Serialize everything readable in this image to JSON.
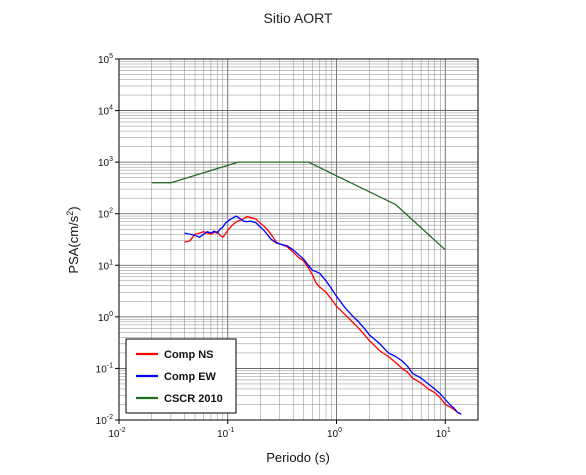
{
  "chart_data": {
    "type": "line",
    "title": "Sitio AORT",
    "xlabel": "Periodo (s)",
    "ylabel_base": "PSA(cm/s",
    "ylabel_exp": "2",
    "ylabel_close": ")",
    "x_scale": "log",
    "y_scale": "log",
    "xlim": [
      0.01,
      20
    ],
    "ylim": [
      0.01,
      100000
    ],
    "grid": true,
    "legend_position": "bottom-left",
    "x_ticks": [
      {
        "base": "10",
        "exp": "-2",
        "value": 0.01
      },
      {
        "base": "10",
        "exp": "-1",
        "value": 0.1
      },
      {
        "base": "10",
        "exp": "0",
        "value": 1
      },
      {
        "base": "10",
        "exp": "1",
        "value": 10
      }
    ],
    "y_ticks": [
      {
        "base": "10",
        "exp": "-2",
        "value": 0.01
      },
      {
        "base": "10",
        "exp": "-1",
        "value": 0.1
      },
      {
        "base": "10",
        "exp": "0",
        "value": 1
      },
      {
        "base": "10",
        "exp": "1",
        "value": 10
      },
      {
        "base": "10",
        "exp": "2",
        "value": 100
      },
      {
        "base": "10",
        "exp": "3",
        "value": 1000
      },
      {
        "base": "10",
        "exp": "4",
        "value": 10000
      },
      {
        "base": "10",
        "exp": "5",
        "value": 100000
      }
    ],
    "series": [
      {
        "name": "Comp NS",
        "color": "#ff0000",
        "x": [
          0.04,
          0.045,
          0.05,
          0.055,
          0.06,
          0.065,
          0.07,
          0.075,
          0.08,
          0.085,
          0.09,
          0.095,
          0.1,
          0.11,
          0.12,
          0.13,
          0.14,
          0.15,
          0.16,
          0.18,
          0.2,
          0.22,
          0.25,
          0.28,
          0.3,
          0.35,
          0.4,
          0.45,
          0.5,
          0.55,
          0.6,
          0.65,
          0.7,
          0.8,
          0.9,
          1,
          1.2,
          1.4,
          1.6,
          1.8,
          2,
          2.5,
          3,
          3.5,
          4,
          4.5,
          5,
          6,
          7,
          8,
          9,
          10,
          11,
          12,
          13,
          14
        ],
        "y": [
          28,
          30,
          40,
          42,
          45,
          42,
          40,
          43,
          45,
          38,
          35,
          40,
          48,
          60,
          70,
          75,
          80,
          88,
          85,
          80,
          65,
          55,
          40,
          28,
          26,
          23,
          18,
          14,
          12,
          9,
          6.5,
          4.5,
          3.8,
          3,
          2.2,
          1.6,
          1.1,
          0.8,
          0.6,
          0.45,
          0.35,
          0.22,
          0.17,
          0.13,
          0.1,
          0.085,
          0.065,
          0.052,
          0.04,
          0.034,
          0.027,
          0.02,
          0.018,
          0.016,
          0.014,
          0.013
        ]
      },
      {
        "name": "Comp EW",
        "color": "#0000ff",
        "x": [
          0.04,
          0.045,
          0.05,
          0.055,
          0.06,
          0.065,
          0.07,
          0.075,
          0.08,
          0.085,
          0.09,
          0.095,
          0.1,
          0.11,
          0.12,
          0.13,
          0.14,
          0.15,
          0.16,
          0.18,
          0.2,
          0.22,
          0.25,
          0.28,
          0.3,
          0.35,
          0.4,
          0.45,
          0.5,
          0.55,
          0.6,
          0.65,
          0.7,
          0.8,
          0.9,
          1,
          1.2,
          1.4,
          1.6,
          1.8,
          2,
          2.5,
          3,
          3.5,
          4,
          4.5,
          5,
          6,
          7,
          8,
          9,
          10,
          11,
          12,
          13,
          14
        ],
        "y": [
          42,
          40,
          38,
          35,
          40,
          45,
          42,
          46,
          42,
          50,
          55,
          65,
          72,
          82,
          90,
          80,
          72,
          70,
          72,
          68,
          55,
          45,
          32,
          27,
          26,
          24,
          20,
          16,
          13,
          10,
          8,
          7.5,
          7,
          5,
          3.5,
          2.5,
          1.5,
          1.05,
          0.8,
          0.6,
          0.45,
          0.3,
          0.2,
          0.17,
          0.14,
          0.11,
          0.08,
          0.065,
          0.05,
          0.04,
          0.032,
          0.025,
          0.02,
          0.017,
          0.014,
          0.013
        ]
      },
      {
        "name": "CSCR 2010",
        "color": "#236b23",
        "x": [
          0.02,
          0.03,
          0.125,
          0.55,
          3.5,
          10
        ],
        "y": [
          400,
          400,
          1000,
          1000,
          150,
          20
        ]
      }
    ]
  }
}
